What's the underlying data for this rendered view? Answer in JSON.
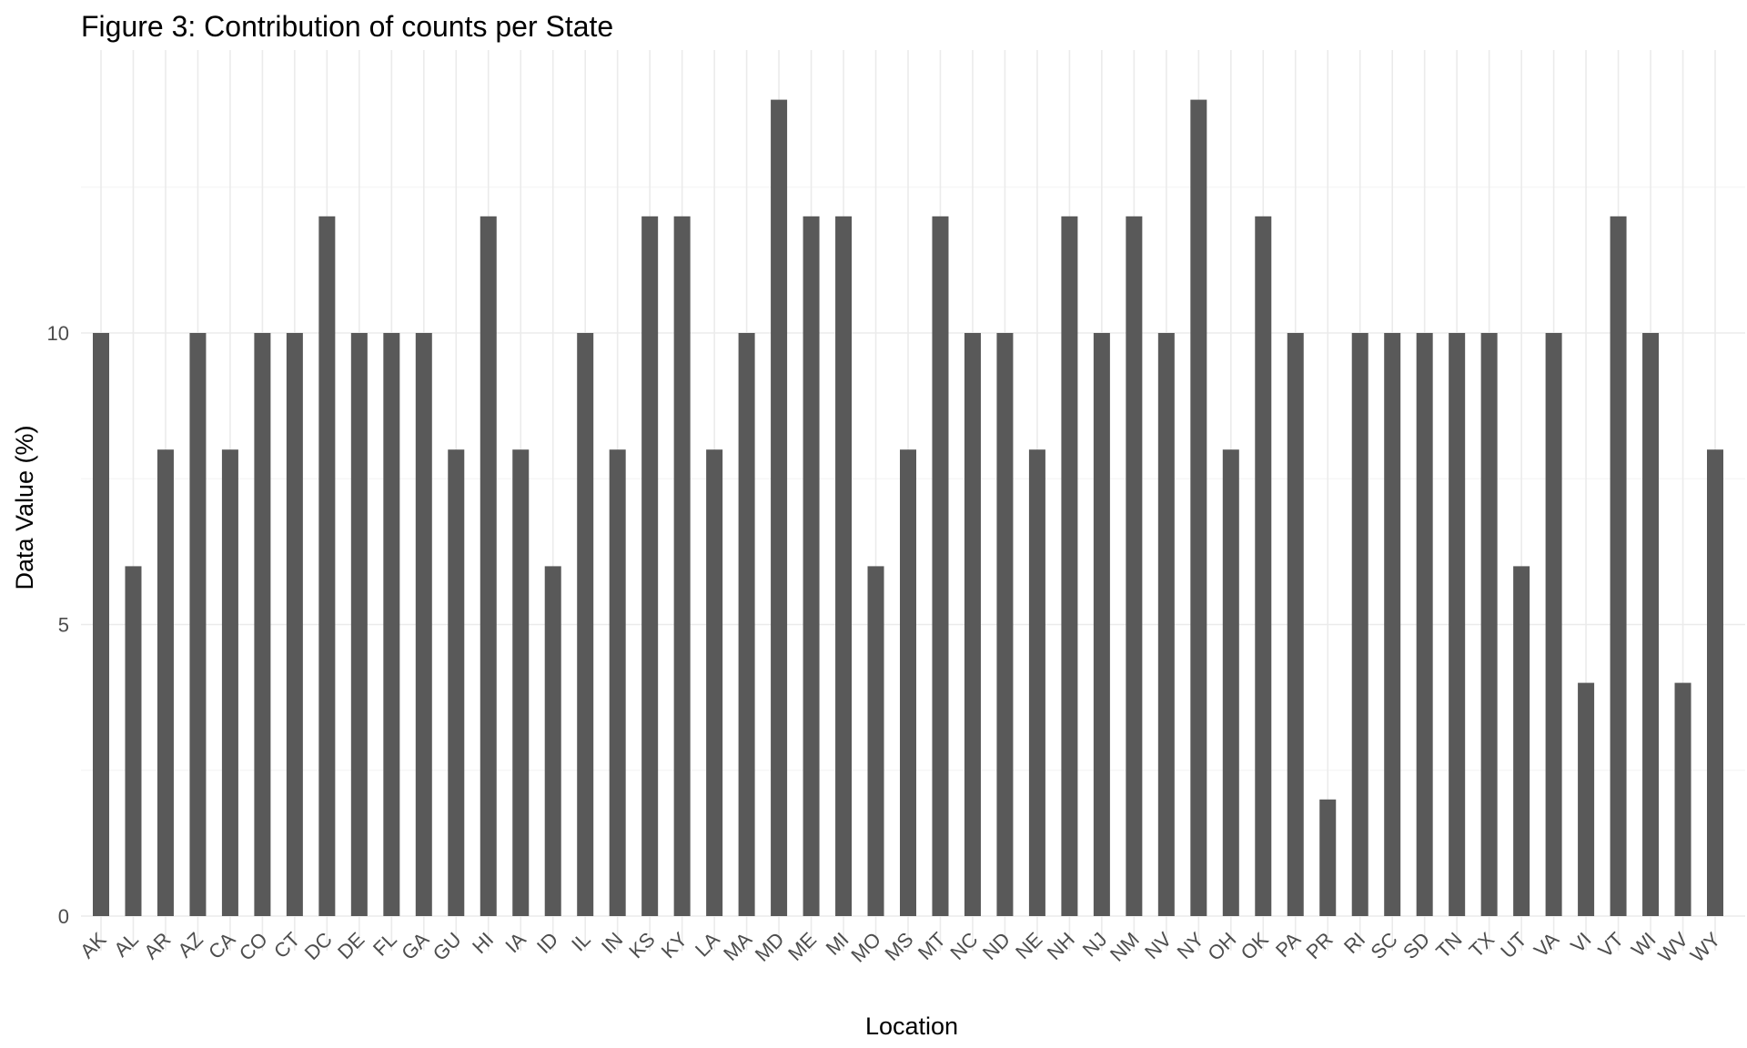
{
  "chart_data": {
    "type": "bar",
    "title": "Figure 3: Contribution of counts per State",
    "xlabel": "Location",
    "ylabel": "Data Value (%)",
    "categories": [
      "AK",
      "AL",
      "AR",
      "AZ",
      "CA",
      "CO",
      "CT",
      "DC",
      "DE",
      "FL",
      "GA",
      "GU",
      "HI",
      "IA",
      "ID",
      "IL",
      "IN",
      "KS",
      "KY",
      "LA",
      "MA",
      "MD",
      "ME",
      "MI",
      "MO",
      "MS",
      "MT",
      "NC",
      "ND",
      "NE",
      "NH",
      "NJ",
      "NM",
      "NV",
      "NY",
      "OH",
      "OK",
      "PA",
      "PR",
      "RI",
      "SC",
      "SD",
      "TN",
      "TX",
      "UT",
      "VA",
      "VI",
      "VT",
      "WI",
      "WV",
      "WY"
    ],
    "values": [
      10,
      6,
      8,
      10,
      8,
      10,
      10,
      12,
      10,
      10,
      10,
      8,
      12,
      8,
      6,
      10,
      8,
      12,
      12,
      8,
      10,
      14,
      12,
      12,
      6,
      8,
      12,
      10,
      10,
      8,
      12,
      10,
      12,
      10,
      14,
      8,
      12,
      10,
      2,
      10,
      10,
      10,
      10,
      10,
      6,
      10,
      4,
      12,
      10,
      4,
      8
    ],
    "yticks": [
      0,
      5,
      10
    ],
    "ylim": [
      0,
      14.7
    ],
    "grid": true,
    "legend": "none",
    "bar_color": "#595959",
    "grid_color": "#ebebeb"
  }
}
